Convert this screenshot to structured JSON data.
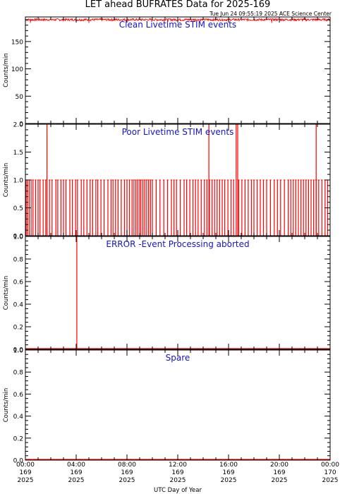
{
  "title": "LET ahead BUFRATES Data for 2025-169",
  "timestamp": "Tue Jun 24 09:55:19 2025 ACE Science Center",
  "xlabel": "UTC Day of Year",
  "colors": {
    "data": "#ff0000",
    "panel_title": "#1515c8",
    "axes": "#000000"
  },
  "chart_data": [
    {
      "type": "line",
      "title": "Clean Livetime STIM events",
      "ylabel": "Counts/min",
      "ylim": [
        0,
        195
      ],
      "yticks": [
        0,
        50,
        100,
        150
      ],
      "series": [
        {
          "values_summary": "steady near 190 counts/min all day",
          "level": 190,
          "noise": 2
        }
      ]
    },
    {
      "type": "line",
      "title": "Poor Livetime STIM events",
      "ylabel": "Counts/min",
      "ylim": [
        0,
        2.0
      ],
      "yticks": [
        0.0,
        0.5,
        1.0,
        1.5,
        2.0
      ],
      "series": [
        {
          "ones_hours": [
            0.05,
            0.15,
            0.3,
            0.45,
            0.6,
            0.8,
            1.0,
            1.15,
            1.4,
            1.6,
            1.9,
            2.1,
            2.4,
            2.55,
            2.8,
            3.0,
            3.2,
            3.5,
            3.7,
            3.95,
            4.1,
            4.4,
            4.6,
            4.85,
            5.1,
            5.3,
            5.55,
            5.7,
            5.95,
            6.2,
            6.5,
            6.75,
            6.9,
            7.1,
            7.3,
            7.55,
            7.8,
            8.0,
            8.2,
            8.4,
            8.55,
            8.7,
            8.85,
            9.0,
            9.1,
            9.25,
            9.4,
            9.55,
            9.7,
            9.85,
            10.0,
            10.3,
            10.6,
            10.9,
            11.2,
            11.5,
            11.7,
            11.9,
            12.2,
            12.5,
            12.7,
            12.95,
            13.2,
            13.4,
            13.6,
            13.85,
            14.1,
            14.3,
            14.5,
            14.7,
            14.9,
            15.1,
            15.3,
            15.5,
            15.7,
            15.95,
            16.2,
            16.4,
            16.8,
            17.05,
            17.3,
            17.55,
            17.8,
            18.0,
            18.25,
            18.5,
            18.75,
            19.0,
            19.3,
            19.6,
            19.85,
            20.1,
            20.4,
            20.7,
            20.9,
            21.1,
            21.3,
            21.5,
            21.7,
            21.9,
            22.1,
            22.3,
            22.5,
            22.7,
            22.9,
            23.1,
            23.35,
            23.6,
            23.8
          ],
          "twos_hours": [
            1.7,
            14.45,
            16.6,
            16.72,
            22.9
          ]
        }
      ]
    },
    {
      "type": "line",
      "title": "ERROR -Event Processing aborted",
      "ylabel": "Counts/min",
      "ylim": [
        0,
        1.0
      ],
      "yticks": [
        0.0,
        0.2,
        0.4,
        0.6,
        0.8,
        1.0
      ],
      "series": [
        {
          "spikes": [
            {
              "hour": 4.05,
              "value": 1.0
            }
          ],
          "baseline": 0
        }
      ]
    },
    {
      "type": "line",
      "title": "Spare",
      "ylabel": "Counts/min",
      "ylim": [
        0,
        1.0
      ],
      "yticks": [
        0.0,
        0.2,
        0.4,
        0.6,
        0.8,
        1.0
      ],
      "series": [
        {
          "baseline": 0
        }
      ]
    }
  ],
  "xticks": [
    {
      "time": "00:00",
      "doy": "169",
      "year": "2025",
      "hour": 0
    },
    {
      "time": "04:00",
      "doy": "169",
      "year": "2025",
      "hour": 4
    },
    {
      "time": "08:00",
      "doy": "169",
      "year": "2025",
      "hour": 8
    },
    {
      "time": "12:00",
      "doy": "169",
      "year": "2025",
      "hour": 12
    },
    {
      "time": "16:00",
      "doy": "169",
      "year": "2025",
      "hour": 16
    },
    {
      "time": "20:00",
      "doy": "169",
      "year": "2025",
      "hour": 20
    },
    {
      "time": "00:00",
      "doy": "170",
      "year": "2025",
      "hour": 24
    }
  ]
}
